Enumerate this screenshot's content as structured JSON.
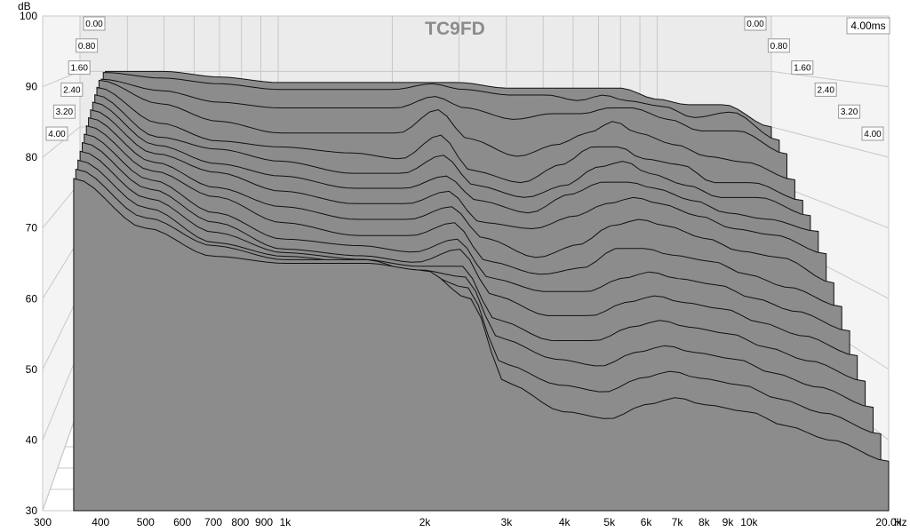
{
  "chart_data": {
    "type": "area",
    "title": "TC9FD",
    "xlabel": "Hz",
    "ylabel": "dB",
    "time_label": "4.00ms",
    "x_scale": "log",
    "xlim": [
      300,
      20000
    ],
    "ylim": [
      30,
      100
    ],
    "zlim_ms": [
      0,
      4.0
    ],
    "x_ticks": [
      "300",
      "400",
      "500",
      "600",
      "700",
      "800",
      "900",
      "1k",
      "2k",
      "3k",
      "4k",
      "5k",
      "6k",
      "7k",
      "8k",
      "9k",
      "10k",
      "20.0k"
    ],
    "y_ticks": [
      "30",
      "40",
      "50",
      "60",
      "70",
      "80",
      "90",
      "100"
    ],
    "time_ticks": [
      "0.00",
      "0.80",
      "1.60",
      "2.40",
      "3.20",
      "4.00"
    ],
    "freq_points": [
      350,
      500,
      700,
      1000,
      1500,
      2000,
      2500,
      3000,
      4000,
      5000,
      6000,
      7000,
      8000,
      10000,
      12000,
      15000,
      20000
    ],
    "series": [
      {
        "time_ms": 0.0,
        "values": [
          90,
          90,
          89,
          88,
          88,
          88,
          88,
          88,
          87,
          87,
          87,
          87,
          87,
          85,
          84,
          84,
          80
        ]
      },
      {
        "time_ms": 0.27,
        "values": [
          90,
          89,
          88,
          87,
          87,
          87,
          88,
          87,
          86,
          86,
          85,
          86,
          85,
          84,
          82,
          83,
          78
        ]
      },
      {
        "time_ms": 0.53,
        "values": [
          89,
          87,
          85,
          84,
          84,
          84,
          86,
          84,
          82,
          83,
          83,
          84,
          84,
          82,
          80,
          80,
          76
        ]
      },
      {
        "time_ms": 0.8,
        "values": [
          89,
          85,
          82,
          80,
          80,
          80,
          84,
          79,
          76,
          78,
          80,
          82,
          80,
          78,
          76,
          75,
          72
        ]
      },
      {
        "time_ms": 1.07,
        "values": [
          88,
          82,
          79,
          78,
          77,
          76,
          80,
          74,
          72,
          75,
          78,
          78,
          76,
          75,
          72,
          72,
          69
        ]
      },
      {
        "time_ms": 1.33,
        "values": [
          87,
          80,
          78,
          76,
          74,
          74,
          77,
          72,
          70,
          72,
          75,
          76,
          74,
          72,
          70,
          70,
          67
        ]
      },
      {
        "time_ms": 1.6,
        "values": [
          86,
          79,
          76,
          74,
          72,
          72,
          74,
          70,
          68,
          71,
          73,
          73,
          72,
          70,
          68,
          67,
          65
        ]
      },
      {
        "time_ms": 1.87,
        "values": [
          85,
          78,
          75,
          72,
          70,
          70,
          72,
          67,
          66,
          68,
          70,
          71,
          70,
          68,
          66,
          65,
          62
        ]
      },
      {
        "time_ms": 2.13,
        "values": [
          84,
          77,
          73,
          70,
          68,
          68,
          70,
          65,
          62,
          64,
          67,
          68,
          67,
          65,
          63,
          62,
          58
        ]
      },
      {
        "time_ms": 2.4,
        "values": [
          83,
          76,
          72,
          68,
          66,
          66,
          68,
          62,
          60,
          61,
          64,
          64,
          63,
          62,
          60,
          58,
          55
        ]
      },
      {
        "time_ms": 2.67,
        "values": [
          82,
          75,
          70,
          66,
          65,
          64,
          66,
          60,
          58,
          58,
          60,
          61,
          60,
          59,
          57,
          55,
          52
        ]
      },
      {
        "time_ms": 2.93,
        "values": [
          81,
          74,
          69,
          65,
          64,
          63,
          65,
          58,
          55,
          55,
          57,
          58,
          57,
          56,
          54,
          52,
          49
        ]
      },
      {
        "time_ms": 3.2,
        "values": [
          80,
          73,
          68,
          65,
          64,
          63,
          63,
          55,
          52,
          52,
          54,
          55,
          54,
          53,
          51,
          49,
          46
        ]
      },
      {
        "time_ms": 3.47,
        "values": [
          79,
          72,
          67,
          65,
          64,
          63,
          62,
          53,
          50,
          49,
          51,
          52,
          51,
          50,
          48,
          46,
          43
        ]
      },
      {
        "time_ms": 3.73,
        "values": [
          78,
          71,
          67,
          65,
          65,
          63,
          61,
          50,
          47,
          46,
          48,
          49,
          48,
          47,
          45,
          43,
          40
        ]
      },
      {
        "time_ms": 4.0,
        "values": [
          77,
          70,
          66,
          65,
          65,
          64,
          60,
          48,
          44,
          43,
          45,
          46,
          45,
          44,
          42,
          40,
          37
        ]
      }
    ]
  }
}
